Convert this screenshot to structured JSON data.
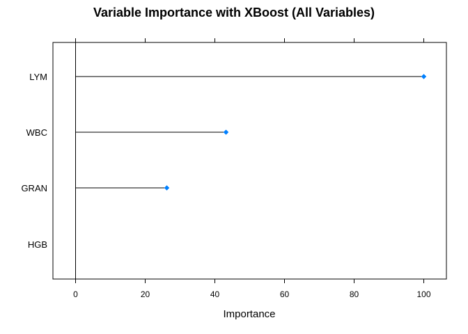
{
  "chart_data": {
    "type": "dotplot",
    "title": "Variable Importance with XBoost (All Variables)",
    "xlabel": "Importance",
    "ylabel": "",
    "xlim": [
      -6.5,
      106.5
    ],
    "xticks": [
      0,
      20,
      40,
      60,
      80,
      100
    ],
    "categories": [
      "LYM",
      "WBC",
      "GRAN",
      "HGB"
    ],
    "values": [
      100,
      43.2,
      26.2,
      0
    ],
    "point_color": "#0080ff",
    "line_color": "#000000",
    "baseline": 0
  }
}
